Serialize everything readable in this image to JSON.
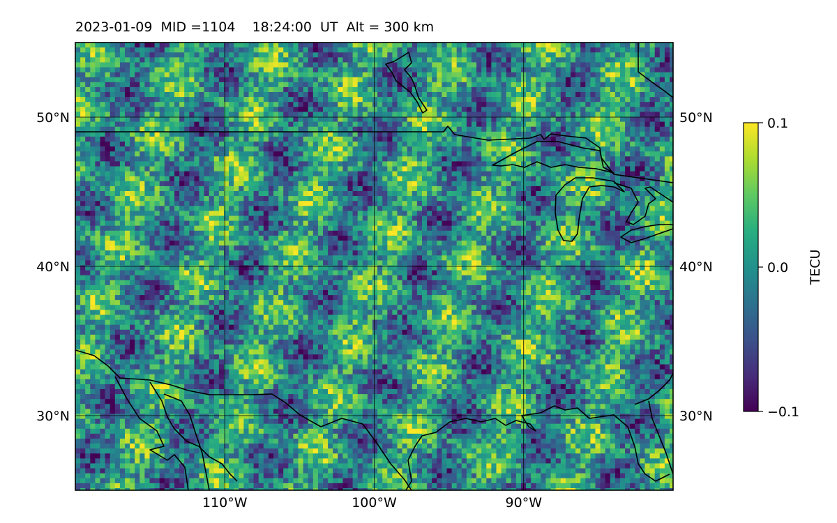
{
  "title": "2023-01-09  MID =1104    18:24:00  UT  Alt = 300 km",
  "map": {
    "lon_range": [
      -120,
      -80
    ],
    "lat_range": [
      25,
      55
    ],
    "x_ticks": [
      {
        "lon": -110,
        "label": "110°W"
      },
      {
        "lon": -100,
        "label": "100°W"
      },
      {
        "lon": -90,
        "label": "90°W"
      }
    ],
    "y_ticks": [
      {
        "lat": 50,
        "label": "50°N"
      },
      {
        "lat": 40,
        "label": "40°N"
      },
      {
        "lat": 30,
        "label": "30°N"
      }
    ],
    "grid": true,
    "colormap": "viridis",
    "colors": {
      "low": "#440154",
      "mid": "#21918c",
      "high": "#fde725",
      "coastline": "#000000",
      "grid": "#000000"
    }
  },
  "colorbar": {
    "label": "TECU",
    "min": -0.1,
    "max": 0.1,
    "ticks": [
      {
        "value": 0.1,
        "label": "0.1"
      },
      {
        "value": 0.0,
        "label": "0.0"
      },
      {
        "value": -0.1,
        "label": "−0.1"
      }
    ]
  }
}
